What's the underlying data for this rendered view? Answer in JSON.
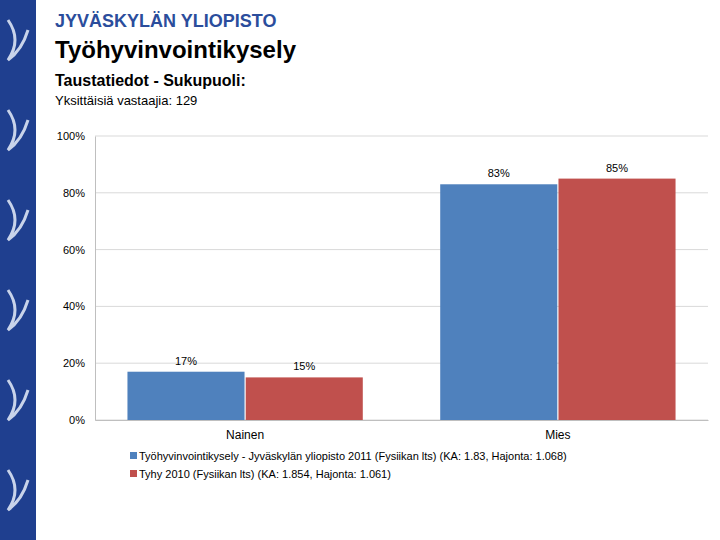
{
  "header": {
    "organization": "JYVÄSKYLÄN YLIOPISTO"
  },
  "chart_data": {
    "type": "bar",
    "title": "Työhyvinvointikysely",
    "subtitle": "Taustatiedot - Sukupuoli:",
    "annotations": [
      "Yksittäisiä vastaajia: 129"
    ],
    "categories": [
      "Nainen",
      "Mies"
    ],
    "series": [
      {
        "name": "Työhyvinvointikysely - Jyväskylän yliopisto 2011 (Fysiikan lts) (KA: 1.83, Hajonta: 1.068)",
        "color": "#4f81bd",
        "values": [
          17,
          83
        ],
        "value_labels": [
          "17%",
          "83%"
        ]
      },
      {
        "name": "Tyhy 2010 (Fysiikan lts) (KA: 1.854, Hajonta: 1.061)",
        "color": "#c0504d",
        "values": [
          15,
          85
        ],
        "value_labels": [
          "15%",
          "85%"
        ]
      }
    ],
    "ylim": [
      0,
      100
    ],
    "yticks": [
      {
        "value": 0,
        "label": "0%"
      },
      {
        "value": 20,
        "label": "20%"
      },
      {
        "value": 40,
        "label": "40%"
      },
      {
        "value": 60,
        "label": "60%"
      },
      {
        "value": 80,
        "label": "80%"
      },
      {
        "value": 100,
        "label": "100%"
      }
    ],
    "grid": true,
    "data_labels": true,
    "legend": "bottom"
  }
}
